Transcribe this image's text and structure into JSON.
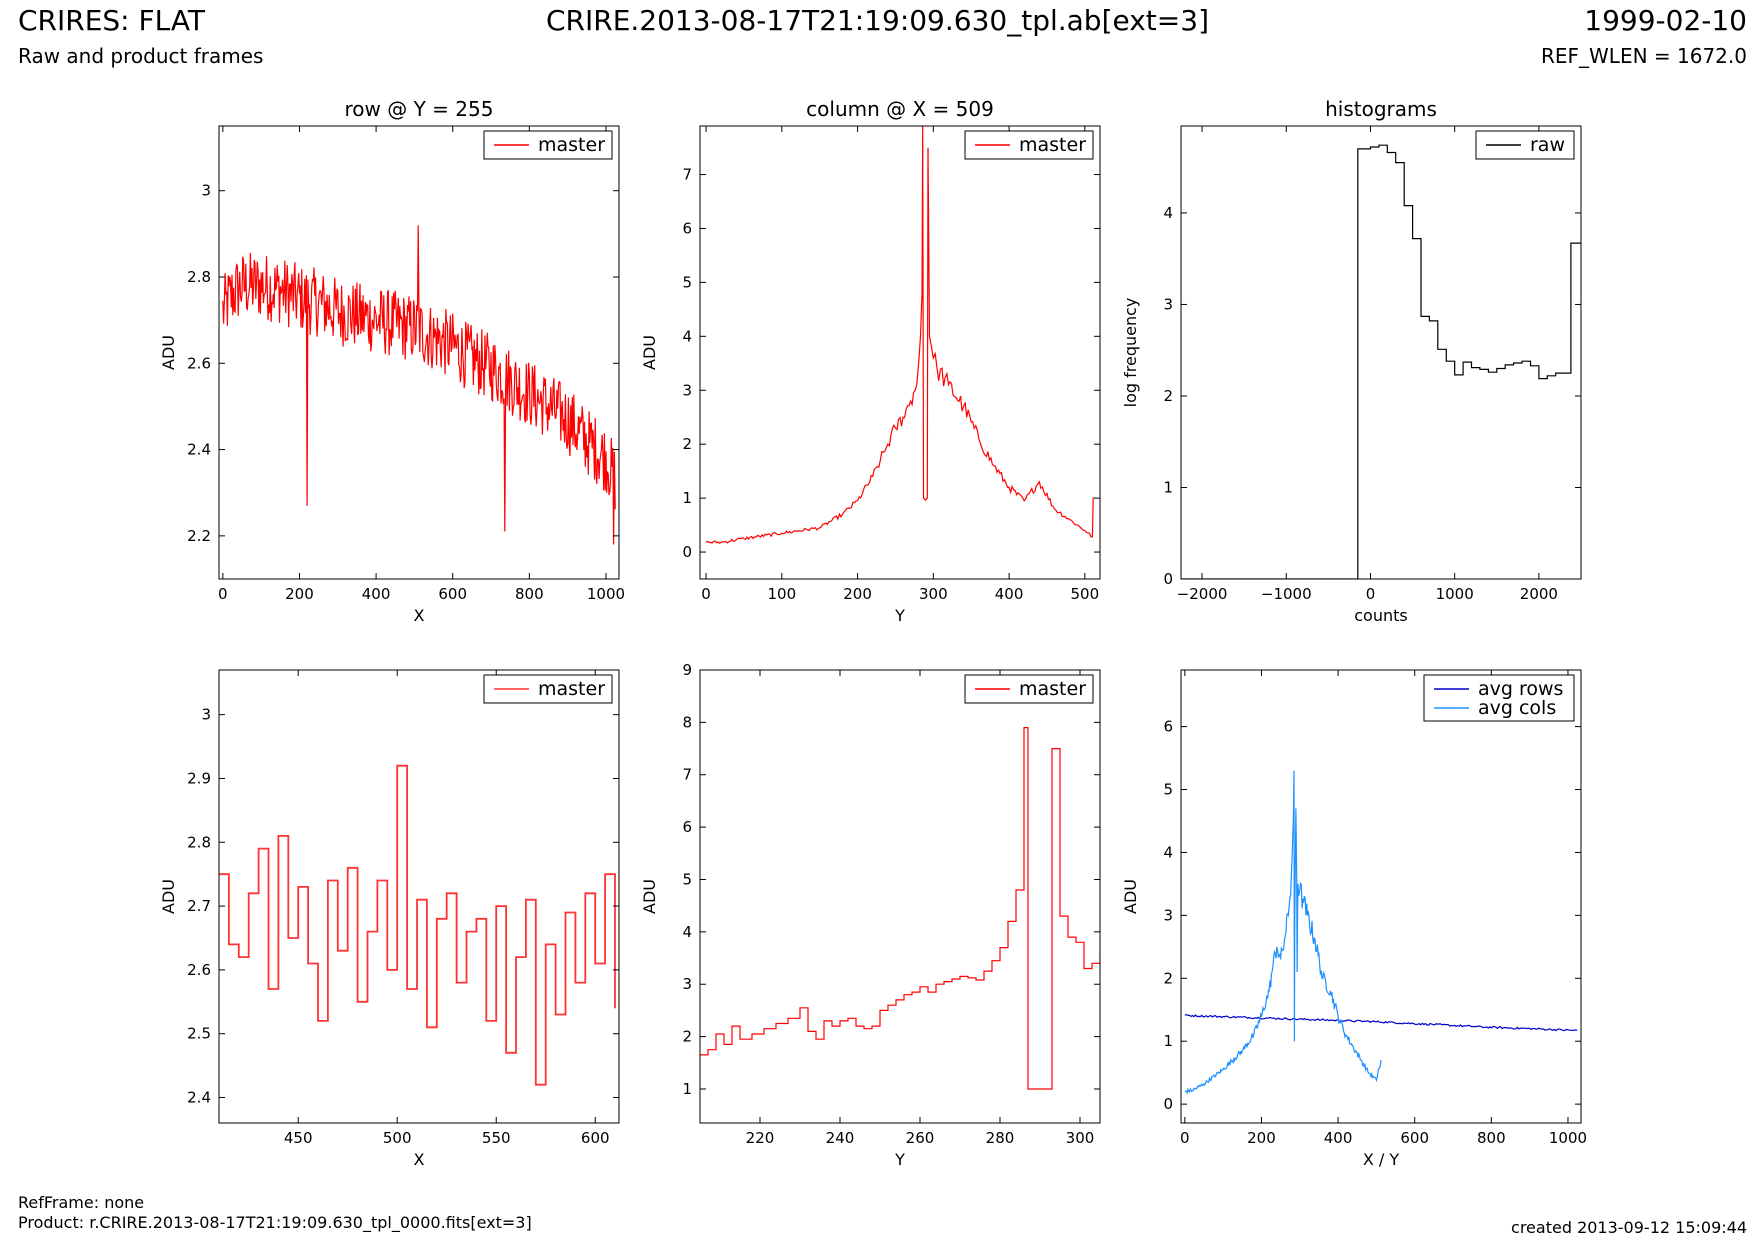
{
  "header": {
    "title_left": "CRIRES: FLAT",
    "subtitle_left": "Raw and product frames",
    "title_center": "CRIRE.2013-08-17T21:19:09.630_tpl.ab[ext=3]",
    "title_right": "1999-02-10",
    "subtitle_right": "REF_WLEN = 1672.0"
  },
  "footer": {
    "ref_frame": "RefFrame: none",
    "product": "Product: r.CRIRE.2013-08-17T21:19:09.630_tpl_0000.fits[ext=3]",
    "created": "created 2013-09-12 15:09:44"
  },
  "colors": {
    "master": "#ff0000",
    "raw": "#000000",
    "avg_rows": "#0000cc",
    "avg_cols": "#1e90ff"
  },
  "chart_data": [
    {
      "id": "row-plot",
      "type": "line",
      "title": "row @ Y = 255",
      "xlabel": "X",
      "ylabel": "ADU",
      "xlim": [
        -10,
        1034
      ],
      "ylim": [
        2.1,
        3.15
      ],
      "xticks": [
        0,
        200,
        400,
        600,
        800,
        1000
      ],
      "yticks": [
        2.2,
        2.4,
        2.6,
        2.8,
        3.0
      ],
      "legend": "top-right",
      "series": [
        {
          "name": "master",
          "color": "#ff0000",
          "x": [
            0,
            25,
            50,
            100,
            150,
            200,
            250,
            300,
            350,
            400,
            450,
            500,
            550,
            600,
            650,
            700,
            750,
            800,
            850,
            900,
            950,
            1000,
            1024
          ],
          "y": [
            2.72,
            2.76,
            2.78,
            2.78,
            2.77,
            2.75,
            2.74,
            2.72,
            2.71,
            2.7,
            2.69,
            2.68,
            2.66,
            2.64,
            2.61,
            2.59,
            2.56,
            2.53,
            2.5,
            2.47,
            2.42,
            2.38,
            2.33
          ],
          "spikes": [
            {
              "x": 220,
              "y": 2.27
            },
            {
              "x": 735,
              "y": 2.21
            },
            {
              "x": 510,
              "y": 2.92
            },
            {
              "x": 1020,
              "y": 2.18
            }
          ]
        }
      ]
    },
    {
      "id": "col-plot",
      "type": "line",
      "title": "column @ X = 509",
      "xlabel": "Y",
      "ylabel": "ADU",
      "xlim": [
        -8,
        520
      ],
      "ylim": [
        -0.5,
        7.9
      ],
      "xticks": [
        0,
        100,
        200,
        300,
        400,
        500
      ],
      "yticks": [
        0,
        1,
        2,
        3,
        4,
        5,
        6,
        7
      ],
      "legend": "top-right",
      "series": [
        {
          "name": "master",
          "color": "#ff0000",
          "x": [
            0,
            20,
            50,
            100,
            150,
            180,
            200,
            220,
            230,
            240,
            250,
            260,
            270,
            278,
            283,
            285,
            286,
            287,
            292,
            293,
            295,
            300,
            305,
            320,
            340,
            360,
            380,
            400,
            420,
            440,
            460,
            480,
            500,
            510,
            511,
            512
          ],
          "y": [
            0.18,
            0.18,
            0.25,
            0.35,
            0.45,
            0.7,
            0.95,
            1.4,
            1.7,
            2.0,
            2.3,
            2.5,
            2.8,
            3.1,
            4.0,
            4.8,
            7.9,
            1.0,
            1.0,
            7.5,
            4.0,
            3.6,
            3.4,
            3.1,
            2.7,
            2.1,
            1.6,
            1.2,
            0.95,
            1.3,
            0.8,
            0.6,
            0.4,
            0.28,
            1.0,
            1.0
          ]
        }
      ]
    },
    {
      "id": "hist-plot",
      "type": "line",
      "title": "histograms",
      "xlabel": "counts",
      "ylabel": "log frequency",
      "xlim": [
        -2250,
        2500
      ],
      "ylim": [
        0,
        4.95
      ],
      "xticks": [
        -2000,
        -1000,
        0,
        1000,
        2000
      ],
      "yticks": [
        0,
        1,
        2,
        3,
        4
      ],
      "legend": "top-right",
      "series": [
        {
          "name": "raw",
          "color": "#000000",
          "x": [
            -2250,
            -150,
            -150,
            0,
            100,
            200,
            300,
            400,
            500,
            600,
            700,
            800,
            900,
            1000,
            1100,
            1200,
            1300,
            1400,
            1500,
            1600,
            1700,
            1800,
            1900,
            2000,
            2100,
            2200,
            2300,
            2380,
            2500
          ],
          "y": [
            0,
            0,
            4.7,
            4.72,
            4.74,
            4.66,
            4.55,
            4.08,
            3.72,
            2.87,
            2.82,
            2.51,
            2.38,
            2.23,
            2.37,
            2.31,
            2.29,
            2.26,
            2.3,
            2.34,
            2.36,
            2.38,
            2.33,
            2.19,
            2.22,
            2.25,
            2.25,
            3.67,
            3.67
          ]
        }
      ]
    },
    {
      "id": "row-zoom-plot",
      "type": "line",
      "title": "",
      "xlabel": "X",
      "ylabel": "ADU",
      "xlim": [
        410,
        612
      ],
      "ylim": [
        2.36,
        3.07
      ],
      "xticks": [
        450,
        500,
        550,
        600
      ],
      "yticks": [
        2.4,
        2.5,
        2.6,
        2.7,
        2.8,
        2.9,
        3.0
      ],
      "legend": "top-right",
      "series": [
        {
          "name": "master",
          "color": "#ff3333",
          "x": [
            410,
            415,
            420,
            425,
            430,
            435,
            440,
            445,
            450,
            455,
            460,
            465,
            470,
            475,
            480,
            485,
            490,
            495,
            500,
            505,
            510,
            515,
            520,
            525,
            530,
            535,
            540,
            545,
            550,
            555,
            560,
            565,
            570,
            575,
            580,
            585,
            590,
            595,
            600,
            605,
            610
          ],
          "y": [
            2.75,
            2.64,
            2.62,
            2.72,
            2.79,
            2.57,
            2.81,
            2.65,
            2.73,
            2.61,
            2.52,
            2.74,
            2.63,
            2.76,
            2.55,
            2.66,
            2.74,
            2.6,
            2.92,
            2.57,
            2.71,
            2.51,
            2.68,
            2.72,
            2.58,
            2.66,
            2.68,
            2.52,
            2.7,
            2.47,
            2.62,
            2.71,
            2.42,
            2.64,
            2.53,
            2.69,
            2.58,
            2.72,
            2.61,
            2.75,
            2.54
          ]
        }
      ]
    },
    {
      "id": "col-zoom-plot",
      "type": "line",
      "title": "",
      "xlabel": "Y",
      "ylabel": "ADU",
      "xlim": [
        205,
        305
      ],
      "ylim": [
        0.35,
        9.0
      ],
      "xticks": [
        220,
        240,
        260,
        280,
        300
      ],
      "yticks": [
        1,
        2,
        3,
        4,
        5,
        6,
        7,
        8,
        9
      ],
      "legend": "top-right",
      "series": [
        {
          "name": "master",
          "color": "#ff0000",
          "x": [
            205,
            207,
            209,
            211,
            213,
            215,
            218,
            221,
            224,
            227,
            230,
            232,
            234,
            236,
            238,
            240,
            242,
            244,
            246,
            248,
            250,
            252,
            254,
            256,
            258,
            260,
            262,
            264,
            266,
            268,
            270,
            272,
            274,
            276,
            278,
            280,
            282,
            284,
            286,
            287,
            292,
            293,
            295,
            297,
            299,
            301,
            303,
            305
          ],
          "y": [
            1.65,
            1.75,
            2.05,
            1.85,
            2.2,
            1.95,
            2.05,
            2.15,
            2.25,
            2.35,
            2.55,
            2.1,
            1.95,
            2.3,
            2.2,
            2.3,
            2.35,
            2.2,
            2.15,
            2.2,
            2.5,
            2.6,
            2.7,
            2.8,
            2.85,
            2.95,
            2.85,
            3.0,
            3.05,
            3.1,
            3.15,
            3.12,
            3.08,
            3.25,
            3.45,
            3.7,
            4.2,
            4.8,
            7.9,
            1.0,
            1.0,
            7.5,
            4.3,
            3.9,
            3.8,
            3.3,
            3.4,
            3.6
          ]
        }
      ]
    },
    {
      "id": "avg-plot",
      "type": "line",
      "title": "",
      "xlabel": "X / Y",
      "ylabel": "ADU",
      "xlim": [
        -10,
        1034
      ],
      "ylim": [
        -0.3,
        6.9
      ],
      "xticks": [
        0,
        200,
        400,
        600,
        800,
        1000
      ],
      "yticks": [
        0,
        1,
        2,
        3,
        4,
        5,
        6
      ],
      "legend": "top-right",
      "series": [
        {
          "name": "avg rows",
          "color": "#0000cc",
          "x": [
            0,
            100,
            200,
            300,
            400,
            500,
            600,
            700,
            800,
            900,
            1024
          ],
          "y": [
            1.41,
            1.39,
            1.37,
            1.35,
            1.33,
            1.31,
            1.28,
            1.25,
            1.22,
            1.2,
            1.17
          ]
        },
        {
          "name": "avg cols",
          "color": "#1e90ff",
          "x": [
            0,
            20,
            50,
            100,
            150,
            180,
            200,
            220,
            230,
            240,
            250,
            260,
            270,
            278,
            283,
            285,
            286,
            287,
            290,
            292,
            293,
            295,
            300,
            310,
            320,
            340,
            360,
            380,
            400,
            420,
            440,
            460,
            480,
            500,
            505,
            510,
            512
          ],
          "y": [
            0.2,
            0.22,
            0.32,
            0.55,
            0.85,
            1.1,
            1.4,
            1.8,
            2.2,
            2.5,
            2.3,
            2.6,
            3.0,
            3.6,
            4.5,
            5.3,
            1.0,
            3.0,
            4.7,
            3.6,
            2.1,
            3.5,
            3.4,
            3.2,
            3.0,
            2.6,
            2.0,
            1.8,
            1.4,
            1.1,
            0.9,
            0.7,
            0.5,
            0.38,
            0.55,
            0.6,
            0.7
          ]
        }
      ]
    }
  ]
}
